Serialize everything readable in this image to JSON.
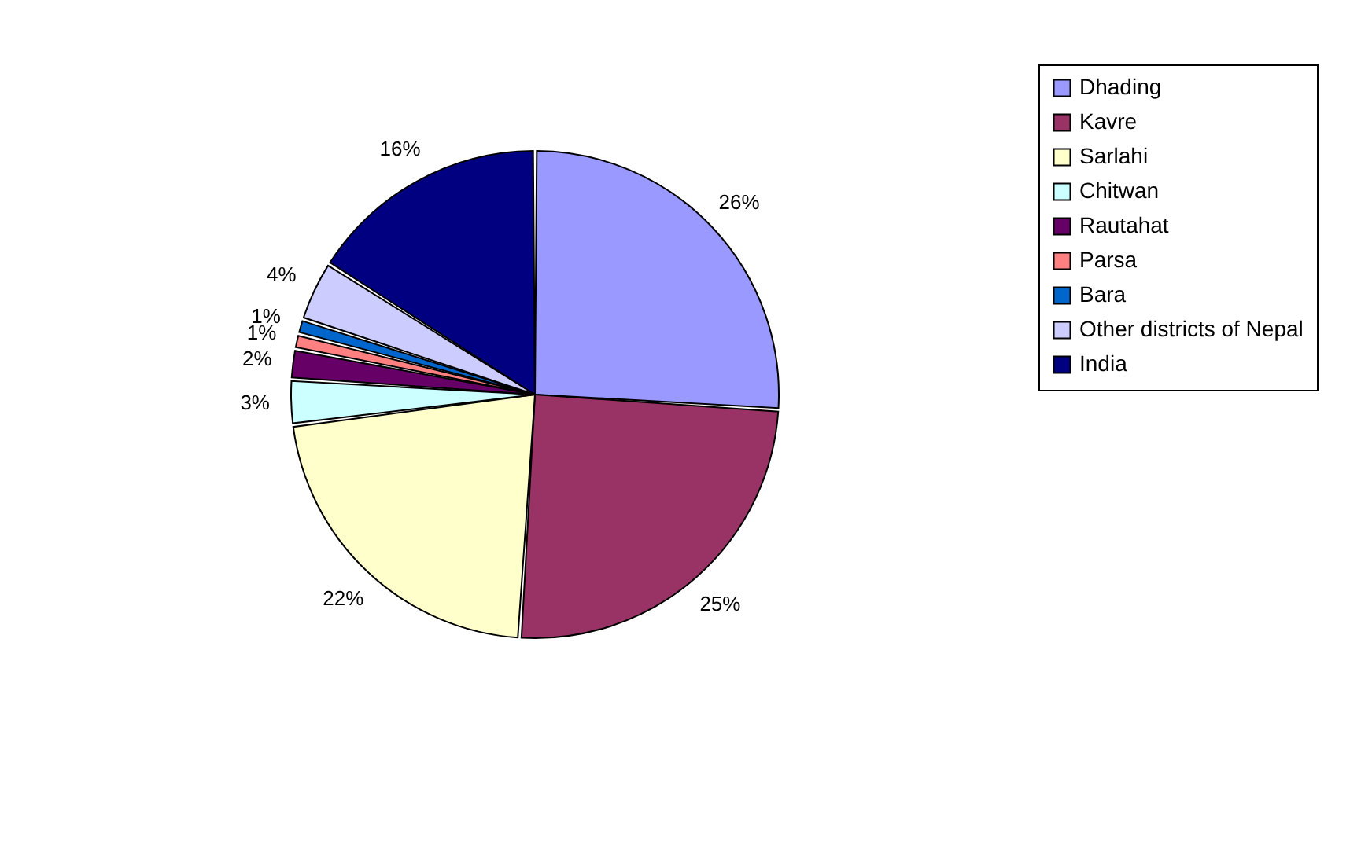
{
  "chart_data": {
    "type": "pie",
    "categories": [
      "Dhading",
      "Kavre",
      "Sarlahi",
      "Chitwan",
      "Rautahat",
      "Parsa",
      "Bara",
      "Other districts of Nepal",
      "India"
    ],
    "values": [
      26,
      25,
      22,
      3,
      2,
      1,
      1,
      4,
      16
    ],
    "colors": [
      "#9999ff",
      "#993366",
      "#ffffcc",
      "#ccffff",
      "#660066",
      "#ff8080",
      "#0066cc",
      "#ccccff",
      "#000080"
    ],
    "value_labels": [
      "26%",
      "25%",
      "22%",
      "3%",
      "2%",
      "1%",
      "1%",
      "4%",
      "16%"
    ],
    "legend": "right"
  }
}
